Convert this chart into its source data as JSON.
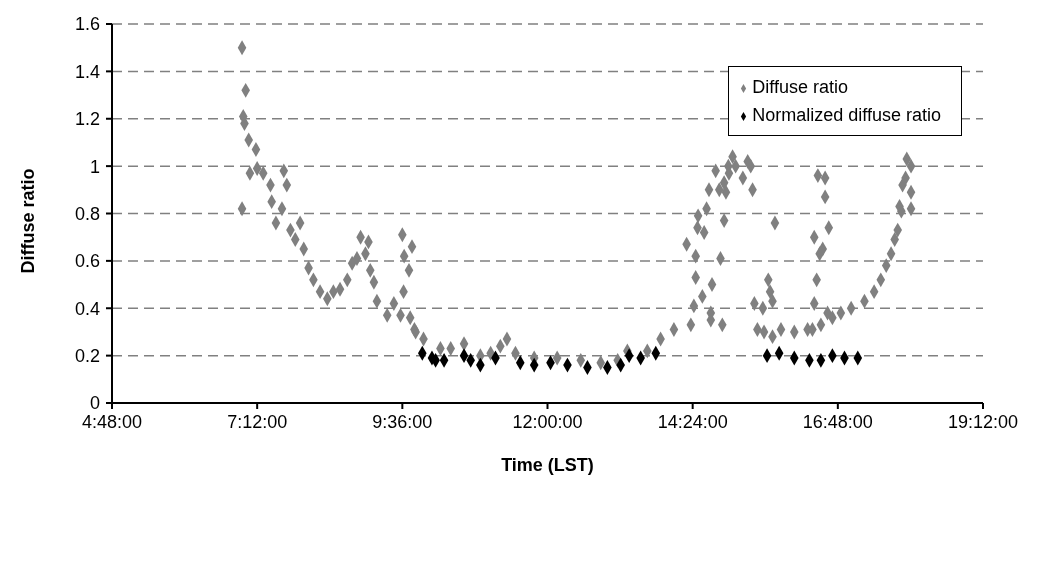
{
  "chart_data": {
    "type": "scatter",
    "xlabel": "Time (LST)",
    "ylabel": "Diffuse ratio",
    "xlim": [
      4.8,
      19.2
    ],
    "xticks": [
      {
        "value": 4.8,
        "label": "4:48:00"
      },
      {
        "value": 7.2,
        "label": "7:12:00"
      },
      {
        "value": 9.6,
        "label": "9:36:00"
      },
      {
        "value": 12,
        "label": "12:00:00"
      },
      {
        "value": 14.4,
        "label": "14:24:00"
      },
      {
        "value": 16.8,
        "label": "16:48:00"
      },
      {
        "value": 19.2,
        "label": "19:12:00"
      }
    ],
    "ylim": [
      0,
      1.6
    ],
    "yticks": [
      0,
      0.2,
      0.4,
      0.6,
      0.8,
      1,
      1.2,
      1.4,
      1.6
    ],
    "grid": "y",
    "legend": "top right",
    "marker": "diamond",
    "series": [
      {
        "name": "Diffuse ratio",
        "color": "#808080",
        "x": [
          6.95,
          7.01,
          6.97,
          6.99,
          7.06,
          7.18,
          6.95,
          7.08,
          7.2,
          7.3,
          7.42,
          7.64,
          7.69,
          7.44,
          7.51,
          7.61,
          7.75,
          7.83,
          7.91,
          7.97,
          8.05,
          8.13,
          8.24,
          8.36,
          8.46,
          8.57,
          8.69,
          8.77,
          8.85,
          8.91,
          9.04,
          8.99,
          9.07,
          9.13,
          9.18,
          9.35,
          9.46,
          9.57,
          9.6,
          9.76,
          9.63,
          9.71,
          9.62,
          9.73,
          9.8,
          9.82,
          9.95,
          10.23,
          10.4,
          10.62,
          10.89,
          11.06,
          11.22,
          11.33,
          11.47,
          11.78,
          12.16,
          12.55,
          12.88,
          13.16,
          13.32,
          13.65,
          13.87,
          14.09,
          14.37,
          14.3,
          14.42,
          14.45,
          14.48,
          14.49,
          14.45,
          14.56,
          14.59,
          14.63,
          14.67,
          14.7,
          14.72,
          14.78,
          14.84,
          14.86,
          14.89,
          14.92,
          14.95,
          15.0,
          14.92,
          14.99,
          15.06,
          15.11,
          15.23,
          15.31,
          15.36,
          15.39,
          14.7,
          15.42,
          15.47,
          15.56,
          15.65,
          15.68,
          15.76,
          15.72,
          15.58,
          15.72,
          15.86,
          16.08,
          16.3,
          16.38,
          16.41,
          16.41,
          16.45,
          16.47,
          16.5,
          16.55,
          16.59,
          16.59,
          16.65,
          16.52,
          16.63,
          16.71,
          16.85,
          17.02,
          17.24,
          17.4,
          17.51,
          17.6,
          17.68,
          17.74,
          17.79,
          17.85,
          17.82,
          18.01,
          17.87,
          17.92,
          18.01,
          18.01,
          17.94
        ],
        "values": [
          1.5,
          1.32,
          1.21,
          1.18,
          1.11,
          1.07,
          0.82,
          0.97,
          0.99,
          0.97,
          0.92,
          0.98,
          0.92,
          0.85,
          0.76,
          0.82,
          0.73,
          0.69,
          0.76,
          0.65,
          0.57,
          0.52,
          0.47,
          0.44,
          0.47,
          0.48,
          0.52,
          0.59,
          0.61,
          0.7,
          0.68,
          0.63,
          0.56,
          0.51,
          0.43,
          0.37,
          0.42,
          0.37,
          0.71,
          0.66,
          0.62,
          0.56,
          0.47,
          0.36,
          0.31,
          0.3,
          0.27,
          0.23,
          0.23,
          0.25,
          0.2,
          0.21,
          0.24,
          0.27,
          0.21,
          0.19,
          0.19,
          0.18,
          0.17,
          0.18,
          0.22,
          0.22,
          0.27,
          0.31,
          0.33,
          0.67,
          0.41,
          0.62,
          0.74,
          0.79,
          0.53,
          0.45,
          0.72,
          0.82,
          0.9,
          0.38,
          0.5,
          0.98,
          0.9,
          0.61,
          0.33,
          0.77,
          0.89,
          0.97,
          0.93,
          1.0,
          1.04,
          1.0,
          0.95,
          1.02,
          1.0,
          0.9,
          0.35,
          0.42,
          0.31,
          0.4,
          0.52,
          0.47,
          0.76,
          0.43,
          0.3,
          0.28,
          0.31,
          0.3,
          0.31,
          0.31,
          0.42,
          0.7,
          0.52,
          0.96,
          0.63,
          0.65,
          0.95,
          0.87,
          0.74,
          0.33,
          0.38,
          0.36,
          0.38,
          0.4,
          0.43,
          0.47,
          0.52,
          0.58,
          0.63,
          0.69,
          0.73,
          0.81,
          0.83,
          0.82,
          0.92,
          0.95,
          0.89,
          1.0,
          1.03
        ]
      },
      {
        "name": "Normalized diffuse ratio",
        "color": "#000000",
        "x": [
          9.93,
          10.09,
          10.15,
          10.29,
          10.62,
          10.73,
          10.89,
          11.14,
          11.55,
          11.78,
          12.05,
          12.33,
          12.66,
          12.99,
          13.21,
          13.35,
          13.54,
          13.79,
          15.63,
          15.83,
          16.08,
          16.33,
          16.52,
          16.71,
          16.91,
          17.13
        ],
        "values": [
          0.21,
          0.19,
          0.18,
          0.18,
          0.2,
          0.18,
          0.16,
          0.19,
          0.17,
          0.16,
          0.17,
          0.16,
          0.15,
          0.15,
          0.16,
          0.2,
          0.19,
          0.21,
          0.2,
          0.21,
          0.19,
          0.18,
          0.18,
          0.2,
          0.19,
          0.19
        ]
      }
    ]
  }
}
